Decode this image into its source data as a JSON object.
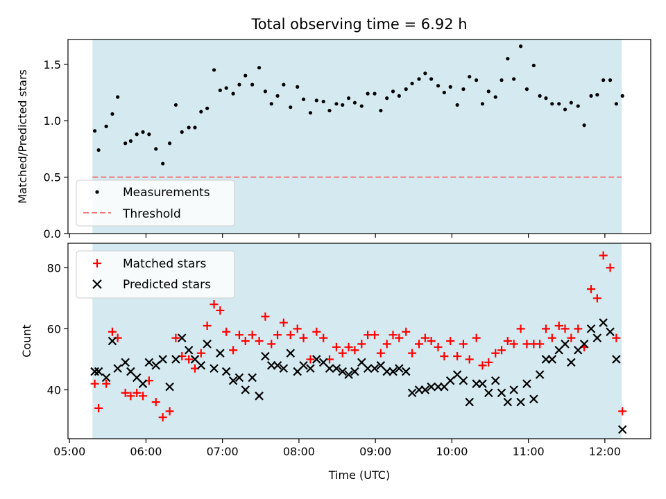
{
  "colors": {
    "shade": "#d4eaf0",
    "threshold": "#f07878",
    "matched": "#ff0000",
    "predicted": "#000000",
    "measurement": "#000000"
  },
  "chart_data": [
    {
      "type": "scatter",
      "title": "Total observing time = 6.92 h",
      "xlabel": "",
      "ylabel": "Matched/Predicted stars",
      "ylim": [
        0,
        1.72
      ],
      "yticks": [
        0.0,
        0.5,
        1.0,
        1.5
      ],
      "ytick_labels": [
        "0.0",
        "0.5",
        "1.0",
        "1.5"
      ],
      "xlim_hours": [
        4.98,
        12.6
      ],
      "shaded_span_hours": [
        5.3,
        12.22
      ],
      "legend_position": "lower-left",
      "series": [
        {
          "name": "Measurements",
          "x": [
            5.33,
            5.38,
            5.48,
            5.56,
            5.63,
            5.73,
            5.8,
            5.88,
            5.96,
            6.04,
            6.13,
            6.22,
            6.31,
            6.39,
            6.47,
            6.56,
            6.64,
            6.72,
            6.8,
            6.89,
            6.97,
            7.05,
            7.14,
            7.22,
            7.3,
            7.39,
            7.48,
            7.56,
            7.64,
            7.72,
            7.8,
            7.89,
            7.98,
            8.06,
            8.15,
            8.23,
            8.32,
            8.4,
            8.49,
            8.57,
            8.65,
            8.73,
            8.82,
            8.9,
            8.99,
            9.07,
            9.15,
            9.23,
            9.31,
            9.4,
            9.48,
            9.57,
            9.65,
            9.73,
            9.82,
            9.9,
            9.98,
            10.07,
            10.15,
            10.23,
            10.32,
            10.4,
            10.48,
            10.57,
            10.65,
            10.73,
            10.81,
            10.9,
            10.98,
            11.07,
            11.15,
            11.23,
            11.31,
            11.4,
            11.48,
            11.56,
            11.65,
            11.73,
            11.82,
            11.9,
            11.98,
            12.07,
            12.15,
            12.23
          ],
          "y": [
            0.91,
            0.74,
            0.95,
            1.06,
            1.21,
            0.8,
            0.82,
            0.88,
            0.9,
            0.88,
            0.75,
            0.62,
            0.8,
            1.14,
            0.9,
            0.94,
            0.94,
            1.08,
            1.11,
            1.45,
            1.27,
            1.29,
            1.24,
            1.32,
            1.4,
            1.32,
            1.47,
            1.26,
            1.15,
            1.22,
            1.32,
            1.12,
            1.3,
            1.19,
            1.07,
            1.18,
            1.17,
            1.09,
            1.15,
            1.14,
            1.2,
            1.16,
            1.13,
            1.24,
            1.24,
            1.09,
            1.2,
            1.26,
            1.22,
            1.28,
            1.33,
            1.37,
            1.42,
            1.37,
            1.31,
            1.25,
            1.3,
            1.14,
            1.28,
            1.39,
            1.36,
            1.15,
            1.26,
            1.21,
            1.36,
            1.55,
            1.37,
            1.66,
            1.28,
            1.49,
            1.22,
            1.2,
            1.15,
            1.15,
            1.1,
            1.16,
            1.13,
            0.96,
            1.22,
            1.23,
            1.36,
            1.36,
            1.15,
            1.22
          ]
        },
        {
          "name": "Threshold",
          "type": "hline",
          "y": 0.5,
          "x": [
            5.3,
            12.22
          ]
        }
      ]
    },
    {
      "type": "scatter",
      "title": "",
      "xlabel": "Time (UTC)",
      "ylabel": "Count",
      "ylim": [
        24,
        88
      ],
      "yticks": [
        40,
        60,
        80
      ],
      "ytick_labels": [
        "40",
        "60",
        "80"
      ],
      "xlim_hours": [
        4.98,
        12.6
      ],
      "xticks_hours": [
        5,
        6,
        7,
        8,
        9,
        10,
        11,
        12
      ],
      "xtick_labels": [
        "05:00",
        "06:00",
        "07:00",
        "08:00",
        "09:00",
        "10:00",
        "11:00",
        "12:00"
      ],
      "shaded_span_hours": [
        5.3,
        12.22
      ],
      "legend_position": "upper-left",
      "series": [
        {
          "name": "Matched stars",
          "x": [
            5.33,
            5.38,
            5.48,
            5.56,
            5.63,
            5.73,
            5.8,
            5.88,
            5.96,
            6.04,
            6.13,
            6.22,
            6.31,
            6.39,
            6.47,
            6.56,
            6.64,
            6.72,
            6.8,
            6.89,
            6.97,
            7.05,
            7.14,
            7.22,
            7.3,
            7.39,
            7.48,
            7.56,
            7.64,
            7.72,
            7.8,
            7.89,
            7.98,
            8.06,
            8.15,
            8.23,
            8.32,
            8.4,
            8.49,
            8.57,
            8.65,
            8.73,
            8.82,
            8.9,
            8.99,
            9.07,
            9.15,
            9.23,
            9.31,
            9.4,
            9.48,
            9.57,
            9.65,
            9.73,
            9.82,
            9.9,
            9.98,
            10.07,
            10.15,
            10.23,
            10.32,
            10.4,
            10.48,
            10.57,
            10.65,
            10.73,
            10.81,
            10.9,
            10.98,
            11.07,
            11.15,
            11.23,
            11.31,
            11.4,
            11.48,
            11.56,
            11.65,
            11.73,
            11.82,
            11.9,
            11.98,
            12.07,
            12.15,
            12.23
          ],
          "y": [
            42,
            34,
            42,
            59,
            57,
            39,
            38,
            39,
            38,
            43,
            36,
            31,
            33,
            57,
            51,
            50,
            47,
            52,
            61,
            68,
            66,
            59,
            53,
            58,
            56,
            58,
            56,
            64,
            55,
            58,
            62,
            58,
            60,
            57,
            50,
            59,
            57,
            50,
            54,
            52,
            54,
            53,
            55,
            58,
            58,
            52,
            55,
            58,
            57,
            59,
            52,
            55,
            57,
            56,
            54,
            51,
            56,
            51,
            55,
            50,
            57,
            48,
            49,
            52,
            53,
            56,
            55,
            60,
            55,
            55,
            55,
            60,
            57,
            61,
            60,
            57,
            60,
            54,
            73,
            70,
            84,
            80,
            57,
            33
          ]
        },
        {
          "name": "Predicted stars",
          "x": [
            5.33,
            5.38,
            5.48,
            5.56,
            5.63,
            5.73,
            5.8,
            5.88,
            5.96,
            6.04,
            6.13,
            6.22,
            6.31,
            6.39,
            6.47,
            6.56,
            6.64,
            6.72,
            6.8,
            6.89,
            6.97,
            7.05,
            7.14,
            7.22,
            7.3,
            7.39,
            7.48,
            7.56,
            7.64,
            7.72,
            7.8,
            7.89,
            7.98,
            8.06,
            8.15,
            8.23,
            8.32,
            8.4,
            8.49,
            8.57,
            8.65,
            8.73,
            8.82,
            8.9,
            8.99,
            9.07,
            9.15,
            9.23,
            9.31,
            9.4,
            9.48,
            9.57,
            9.65,
            9.73,
            9.82,
            9.9,
            9.98,
            10.07,
            10.15,
            10.23,
            10.32,
            10.4,
            10.48,
            10.57,
            10.65,
            10.73,
            10.81,
            10.9,
            10.98,
            11.07,
            11.15,
            11.23,
            11.31,
            11.4,
            11.48,
            11.56,
            11.65,
            11.73,
            11.82,
            11.9,
            11.98,
            12.07,
            12.15,
            12.23
          ],
          "y": [
            46,
            46,
            44,
            56,
            47,
            49,
            46,
            44,
            42,
            49,
            48,
            50,
            41,
            50,
            57,
            53,
            50,
            48,
            55,
            47,
            52,
            46,
            43,
            44,
            40,
            44,
            38,
            51,
            48,
            48,
            47,
            52,
            46,
            48,
            47,
            50,
            49,
            47,
            47,
            46,
            45,
            46,
            49,
            47,
            47,
            48,
            46,
            46,
            47,
            46,
            39,
            40,
            40,
            41,
            41,
            41,
            43,
            45,
            43,
            36,
            42,
            42,
            39,
            43,
            39,
            36,
            40,
            36,
            42,
            37,
            45,
            50,
            50,
            53,
            55,
            49,
            53,
            55,
            60,
            57,
            62,
            59,
            50,
            27
          ]
        }
      ]
    }
  ]
}
